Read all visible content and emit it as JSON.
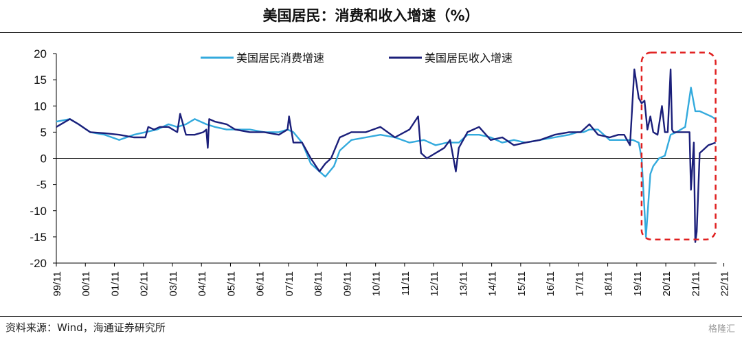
{
  "title": "美国居民：消费和收入增速（%）",
  "source": "资料来源：Wind，海通证券研究所",
  "watermark": "格隆汇",
  "chart_data": {
    "type": "line",
    "ylim": [
      -20,
      20
    ],
    "yticks": [
      20,
      15,
      10,
      5,
      0,
      -5,
      -10,
      -15,
      -20
    ],
    "xlim": [
      1999.833,
      2022.583
    ],
    "xtick_labels": [
      "99/11",
      "00/11",
      "01/11",
      "02/11",
      "03/11",
      "04/11",
      "05/11",
      "06/11",
      "07/11",
      "08/11",
      "09/11",
      "10/11",
      "11/11",
      "12/11",
      "13/11",
      "14/11",
      "15/11",
      "16/11",
      "17/11",
      "18/11",
      "19/11",
      "20/11",
      "21/11",
      "22/11"
    ],
    "legend_position": "top-center",
    "grid": false,
    "highlight_box": {
      "x": [
        2020.0,
        2022.55
      ],
      "y": [
        -15.5,
        20.2
      ],
      "color": "#e02020",
      "style": "dashed"
    },
    "series": [
      {
        "name": "美国居民消费增速",
        "color": "#33aadd",
        "x": [
          1999.833,
          2000.3,
          2000.6,
          2001.0,
          2001.5,
          2002.0,
          2002.5,
          2002.9,
          2003.3,
          2003.7,
          2004.0,
          2004.3,
          2004.6,
          2005.0,
          2005.3,
          2005.7,
          2006.0,
          2006.5,
          2007.0,
          2007.5,
          2007.8,
          2008.0,
          2008.3,
          2008.6,
          2008.9,
          2009.1,
          2009.4,
          2009.6,
          2010.0,
          2010.5,
          2011.0,
          2011.5,
          2012.0,
          2012.5,
          2012.9,
          2013.3,
          2013.7,
          2014.0,
          2014.4,
          2014.8,
          2015.2,
          2015.6,
          2016.0,
          2016.5,
          2017.0,
          2017.5,
          2017.8,
          2018.0,
          2018.2,
          2018.5,
          2018.9,
          2019.4,
          2019.7,
          2019.9,
          2020.0,
          2020.15,
          2020.3,
          2020.4,
          2020.6,
          2020.8,
          2021.0,
          2021.2,
          2021.5,
          2021.7,
          2021.85,
          2022.0,
          2022.2,
          2022.4,
          2022.55
        ],
        "values": [
          7.0,
          7.5,
          6.5,
          5.0,
          4.5,
          3.5,
          4.5,
          5.0,
          5.5,
          6.5,
          6.0,
          6.5,
          7.5,
          6.5,
          6.0,
          5.5,
          5.5,
          5.5,
          5.0,
          5.0,
          5.5,
          5.0,
          3.0,
          -1.0,
          -2.5,
          -3.5,
          -1.5,
          1.5,
          3.5,
          4.0,
          4.5,
          4.0,
          3.0,
          3.5,
          2.5,
          3.0,
          3.0,
          4.5,
          4.5,
          4.0,
          3.0,
          3.5,
          3.0,
          3.5,
          4.0,
          4.5,
          5.0,
          5.0,
          5.5,
          5.5,
          3.5,
          3.5,
          3.5,
          3.0,
          0.0,
          -15.0,
          -3.0,
          -1.5,
          0.0,
          0.5,
          4.5,
          5.0,
          6.0,
          13.5,
          9.0,
          9.0,
          8.5,
          8.0,
          7.5
        ]
      },
      {
        "name": "美国居民收入增速",
        "color": "#1b1f7a",
        "x": [
          1999.833,
          2000.3,
          2000.6,
          2001.0,
          2001.5,
          2002.0,
          2002.5,
          2002.9,
          2003.0,
          2003.2,
          2003.4,
          2003.7,
          2004.0,
          2004.1,
          2004.3,
          2004.6,
          2004.9,
          2005.0,
          2005.05,
          2005.1,
          2005.3,
          2005.7,
          2006.0,
          2006.5,
          2007.0,
          2007.5,
          2007.8,
          2007.85,
          2008.0,
          2008.3,
          2008.6,
          2008.9,
          2009.1,
          2009.3,
          2009.6,
          2010.0,
          2010.5,
          2011.0,
          2011.5,
          2012.0,
          2012.3,
          2012.4,
          2012.6,
          2012.9,
          2013.2,
          2013.4,
          2013.6,
          2013.7,
          2014.0,
          2014.4,
          2014.8,
          2015.2,
          2015.6,
          2016.0,
          2016.5,
          2017.0,
          2017.5,
          2017.9,
          2018.0,
          2018.2,
          2018.5,
          2018.9,
          2019.2,
          2019.4,
          2019.6,
          2019.75,
          2019.9,
          2020.0,
          2020.1,
          2020.2,
          2020.3,
          2020.4,
          2020.55,
          2020.7,
          2020.8,
          2020.9,
          2021.0,
          2021.05,
          2021.1,
          2021.2,
          2021.35,
          2021.5,
          2021.65,
          2021.7,
          2021.8,
          2021.85,
          2021.9,
          2022.0,
          2022.1,
          2022.3,
          2022.55
        ],
        "values": [
          6.0,
          7.5,
          6.5,
          5.0,
          4.8,
          4.5,
          4.0,
          4.0,
          6.0,
          5.5,
          6.0,
          6.0,
          5.0,
          8.5,
          4.5,
          4.5,
          5.0,
          5.5,
          2.0,
          7.5,
          7.0,
          6.5,
          5.5,
          5.0,
          5.0,
          4.5,
          5.5,
          8.0,
          3.0,
          3.0,
          0.0,
          -2.5,
          -1.0,
          0.0,
          4.0,
          5.0,
          5.0,
          6.0,
          4.0,
          5.5,
          8.0,
          1.0,
          0.0,
          1.0,
          2.0,
          3.5,
          -2.5,
          2.0,
          5.0,
          6.0,
          3.5,
          4.0,
          2.5,
          3.0,
          3.5,
          4.5,
          5.0,
          5.0,
          5.5,
          6.5,
          4.5,
          4.0,
          4.5,
          4.5,
          2.5,
          17.0,
          11.5,
          10.5,
          11.0,
          5.5,
          8.0,
          5.0,
          4.5,
          10.0,
          5.0,
          5.0,
          17.0,
          5.5,
          5.0,
          5.0,
          5.0,
          5.0,
          5.0,
          -6.0,
          3.0,
          -16.0,
          -14.0,
          1.0,
          1.5,
          2.5,
          3.0
        ]
      }
    ]
  }
}
